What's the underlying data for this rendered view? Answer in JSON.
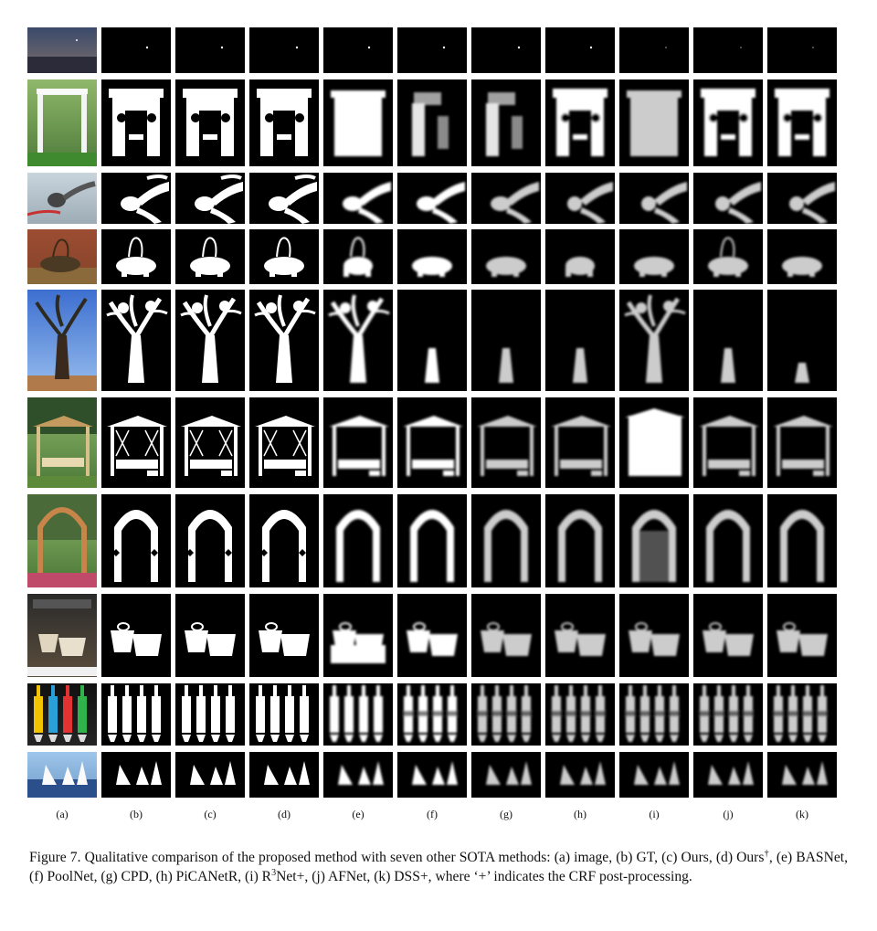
{
  "figure": {
    "column_labels": [
      "(a)",
      "(b)",
      "(c)",
      "(d)",
      "(e)",
      "(f)",
      "(g)",
      "(h)",
      "(i)",
      "(j)",
      "(k)"
    ],
    "rows": [
      {
        "subject": "sky",
        "scene": "dusk"
      },
      {
        "subject": "pergola",
        "scene": "garden"
      },
      {
        "subject": "knot",
        "scene": "closeup"
      },
      {
        "subject": "basket",
        "scene": "brick"
      },
      {
        "subject": "tree",
        "scene": "sky"
      },
      {
        "subject": "swing",
        "scene": "garden"
      },
      {
        "subject": "arch",
        "scene": "garden"
      },
      {
        "subject": "cups",
        "scene": "coffee"
      },
      {
        "subject": "bottles",
        "scene": "colorful"
      },
      {
        "subject": "sails",
        "scene": "sea"
      }
    ]
  },
  "caption": {
    "part1": "Figure 7. Qualitative comparison of the proposed method with seven other SOTA methods: (a) image, (b) GT, (c) Ours, (d) Ours",
    "dagger": "†",
    "part2": ", (e) BASNet, (f) PoolNet, (g) CPD, (h) PiCANetR, (i) R",
    "sup3": "3",
    "part3": "Net+, (j) AFNet, (k) DSS+, where ‘+’ indicates the CRF post-processing."
  }
}
